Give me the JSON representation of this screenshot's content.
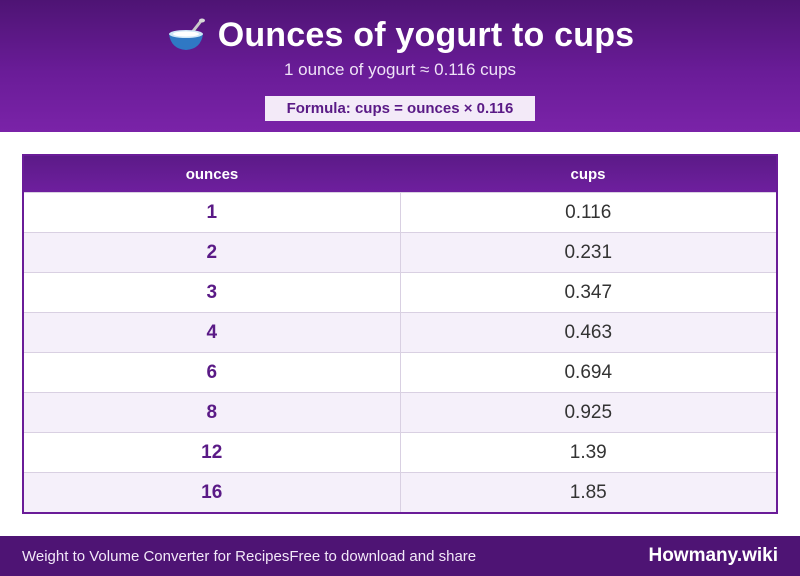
{
  "header": {
    "icon": "bowl-with-spoon-icon",
    "title": "Ounces of yogurt to cups",
    "subtitle": "1 ounce of yogurt ≈ 0.116 cups",
    "formula": "Formula: cups = ounces × 0.116"
  },
  "table": {
    "columns": [
      "ounces",
      "cups"
    ],
    "rows": [
      {
        "ounces": "1",
        "cups": "0.116"
      },
      {
        "ounces": "2",
        "cups": "0.231"
      },
      {
        "ounces": "3",
        "cups": "0.347"
      },
      {
        "ounces": "4",
        "cups": "0.463"
      },
      {
        "ounces": "6",
        "cups": "0.694"
      },
      {
        "ounces": "8",
        "cups": "0.925"
      },
      {
        "ounces": "12",
        "cups": "1.39"
      },
      {
        "ounces": "16",
        "cups": "1.85"
      }
    ]
  },
  "footer": {
    "left_text": "Weight to Volume Converter for Recipes",
    "left_text_2": "Free to download and share",
    "brand": "Howmany.wiki"
  },
  "colors": {
    "header_purple": "#6a1c98",
    "dark_purple": "#4e1474",
    "ounce_text": "#5a1a86",
    "alt_row": "#f5f0fa"
  }
}
